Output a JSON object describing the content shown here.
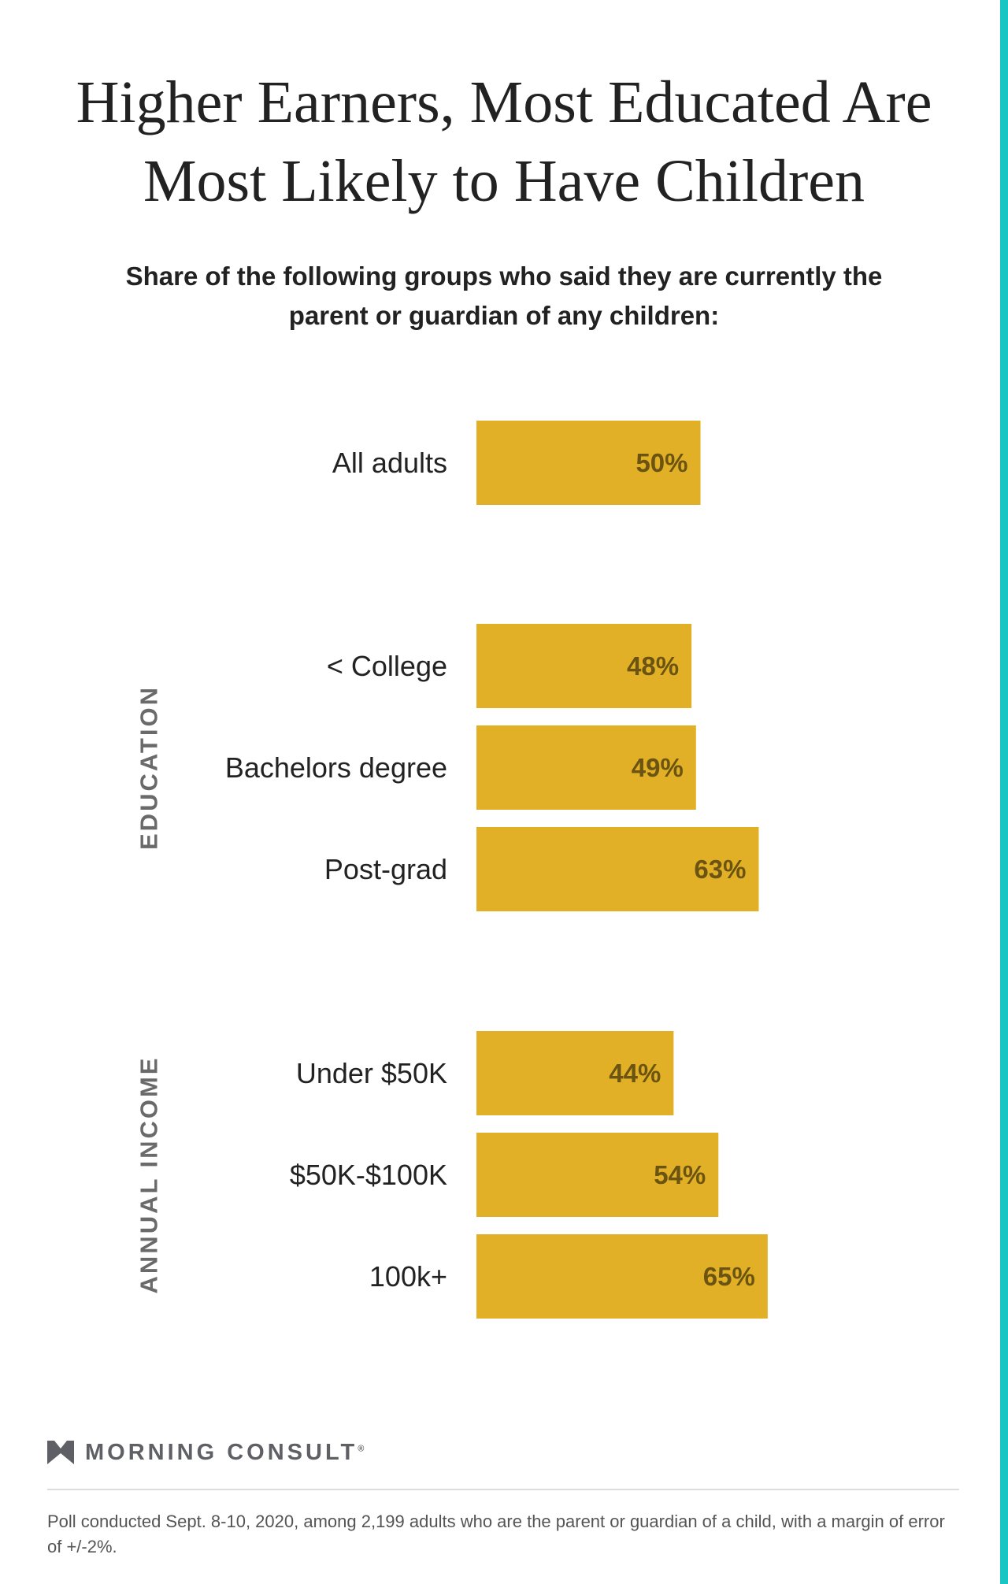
{
  "title": "Higher Earners, Most Educated Are Most Likely to Have Children",
  "subtitle": "Share of the following groups who said they are currently the parent or guardian of any children:",
  "colors": {
    "bar": "#e1b026",
    "bar_label": "#6b5412",
    "category_label": "#222222",
    "group_label": "#6a6a6a",
    "accent": "#19c6c4",
    "brand": "#5f6066"
  },
  "chart_data": {
    "type": "bar",
    "orientation": "horizontal",
    "categories": [
      "All adults",
      "< College",
      "Bachelors degree",
      "Post-grad",
      "Under $50K",
      "$50K-$100K",
      "100k+"
    ],
    "values": [
      50,
      48,
      49,
      63,
      44,
      54,
      65
    ],
    "value_labels": [
      "50%",
      "48%",
      "49%",
      "63%",
      "44%",
      "54%",
      "65%"
    ],
    "groups": [
      {
        "label": "",
        "categories": [
          "All adults"
        ]
      },
      {
        "label": "EDUCATION",
        "categories": [
          "< College",
          "Bachelors degree",
          "Post-grad"
        ]
      },
      {
        "label": "ANNUAL INCOME",
        "categories": [
          "Under $50K",
          "$50K-$100K",
          "100k+"
        ]
      }
    ],
    "unit": "%",
    "xlim": [
      0,
      100
    ],
    "grid": false,
    "legend": "none",
    "title": "Higher Earners, Most Educated Are Most Likely to Have Children",
    "xlabel": "",
    "ylabel": ""
  },
  "branding": {
    "name": "MORNING CONSULT",
    "mark": "®",
    "logo_icon": "morning-consult-m-logo"
  },
  "footnote": "Poll conducted Sept. 8-10, 2020, among 2,199 adults who are the parent or guardian of a child, with a margin of error of +/-2%."
}
